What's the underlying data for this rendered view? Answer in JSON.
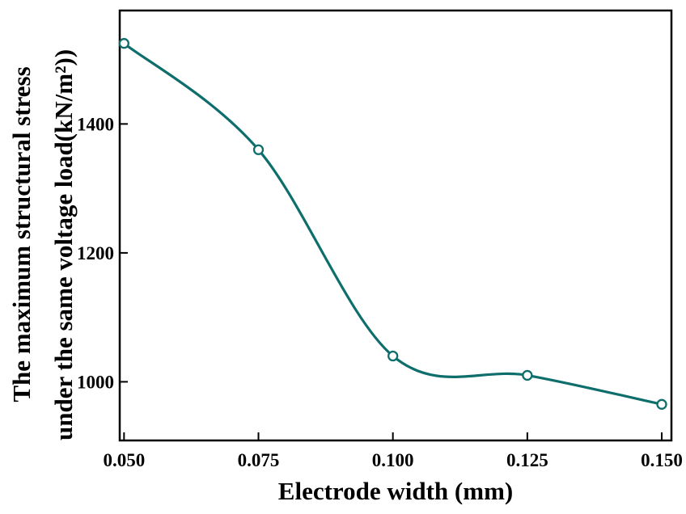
{
  "chart_data": {
    "type": "line",
    "x": [
      0.05,
      0.075,
      0.1,
      0.125,
      0.15
    ],
    "values": [
      1525,
      1360,
      1040,
      1010,
      965
    ],
    "series_name": "Maximum structural stress",
    "x_tick_labels": [
      "0.050",
      "0.075",
      "0.100",
      "0.125",
      "0.150"
    ],
    "y_ticks": [
      1000,
      1200,
      1400
    ],
    "y_tick_labels": [
      "1000",
      "1200",
      "1400"
    ],
    "xlabel": "Electrode width (mm)",
    "ylabel_line1": "The maximum structural stress",
    "ylabel_line2": "under the same voltage load(kN/m²))",
    "title": "",
    "xlim": [
      0.0492,
      0.1518
    ],
    "ylim": [
      909,
      1576
    ],
    "grid": false,
    "legend_position": "none",
    "line_color": "#0d6e6c",
    "marker": "open-circle",
    "marker_fill": "#ffffff",
    "axis_color": "#000000"
  }
}
